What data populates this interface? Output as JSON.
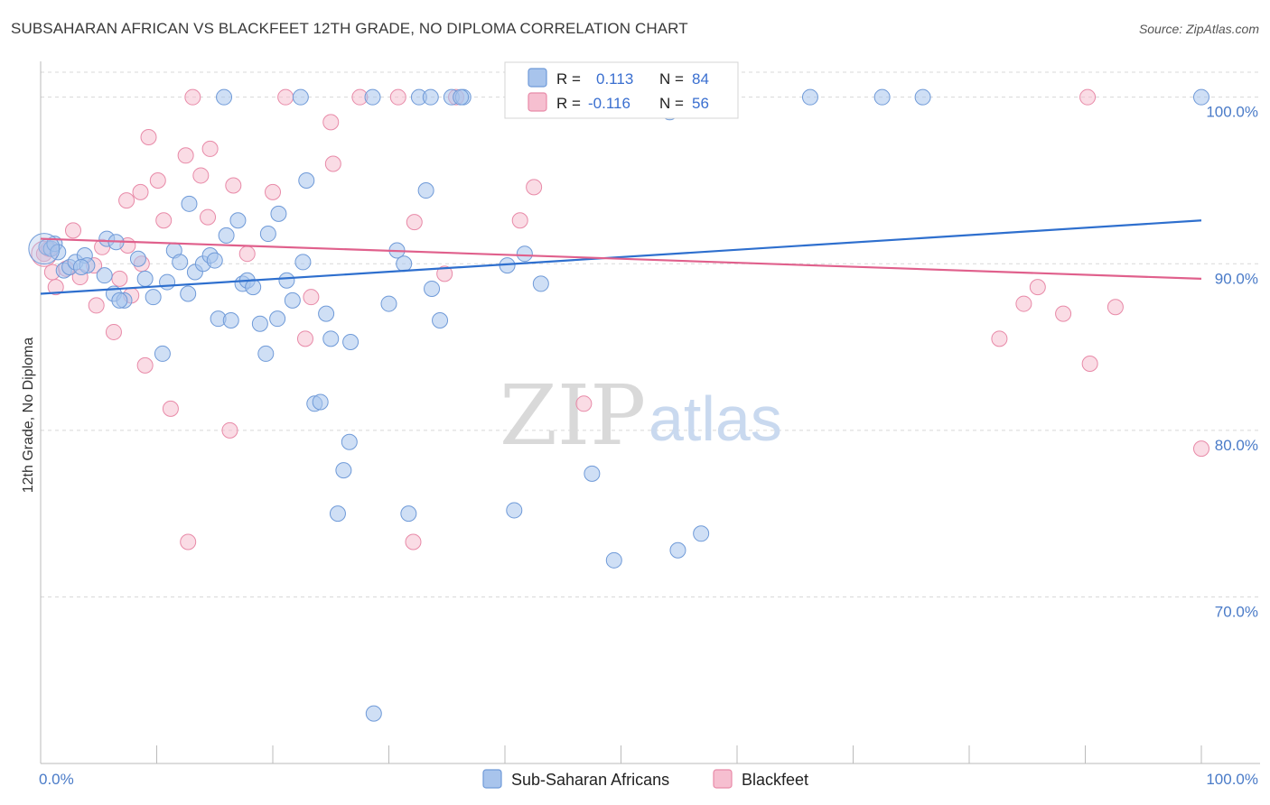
{
  "header": {
    "title": "SUBSAHARAN AFRICAN VS BLACKFEET 12TH GRADE, NO DIPLOMA CORRELATION CHART",
    "source": "Source: ZipAtlas.com"
  },
  "watermark": {
    "zip": "ZIP",
    "atlas": "atlas"
  },
  "colors": {
    "blue_fill": "#a8c4ec",
    "blue_stroke": "#6f9ad8",
    "blue_line": "#2e6fce",
    "pink_fill": "#f6bfd0",
    "pink_stroke": "#e88aa8",
    "pink_line": "#e0608c",
    "grid": "#d8d8d8",
    "tick_text": "#4a7bc8"
  },
  "legend": {
    "rows": [
      {
        "r_label": "R =",
        "r_value": "0.113",
        "n_label": "N =",
        "n_value": "84"
      },
      {
        "r_label": "R =",
        "r_value": "-0.116",
        "n_label": "N =",
        "n_value": "56"
      }
    ]
  },
  "chart_data": {
    "type": "scatter",
    "title": "SUBSAHARAN AFRICAN VS BLACKFEET 12TH GRADE, NO DIPLOMA CORRELATION CHART",
    "xlabel": "",
    "ylabel": "12th Grade, No Diploma",
    "xlim": [
      0,
      100
    ],
    "ylim": [
      60,
      101.5
    ],
    "x_tick_labels": [
      "0.0%",
      "100.0%"
    ],
    "y_ticks": [
      70,
      80,
      90,
      100
    ],
    "y_tick_labels": [
      "70.0%",
      "80.0%",
      "90.0%",
      "100.0%"
    ],
    "grid": true,
    "legend_position": "top-center",
    "series": [
      {
        "name": "Sub-Saharan Africans",
        "r": 0.113,
        "n": 84,
        "trend": {
          "x": [
            0,
            100
          ],
          "y": [
            88.2,
            92.6
          ]
        },
        "points": [
          [
            0.5,
            91.0
          ],
          [
            0.9,
            90.9
          ],
          [
            1.2,
            91.2
          ],
          [
            1.5,
            90.7
          ],
          [
            2.0,
            89.6
          ],
          [
            2.5,
            89.8
          ],
          [
            3.0,
            90.1
          ],
          [
            3.8,
            90.5
          ],
          [
            4.0,
            89.9
          ],
          [
            5.7,
            91.5
          ],
          [
            6.5,
            91.3
          ],
          [
            5.5,
            89.3
          ],
          [
            6.3,
            88.2
          ],
          [
            7.2,
            87.8
          ],
          [
            8.4,
            90.3
          ],
          [
            9.0,
            89.1
          ],
          [
            9.7,
            88.0
          ],
          [
            10.5,
            84.6
          ],
          [
            10.9,
            88.9
          ],
          [
            11.5,
            90.8
          ],
          [
            12.0,
            90.1
          ],
          [
            12.7,
            88.2
          ],
          [
            12.8,
            93.6
          ],
          [
            13.3,
            89.5
          ],
          [
            14.0,
            90.0
          ],
          [
            14.6,
            90.5
          ],
          [
            15.0,
            90.2
          ],
          [
            15.3,
            86.7
          ],
          [
            16.0,
            91.7
          ],
          [
            16.4,
            86.6
          ],
          [
            17.0,
            92.6
          ],
          [
            17.4,
            88.8
          ],
          [
            17.8,
            89.0
          ],
          [
            18.3,
            88.6
          ],
          [
            18.9,
            86.4
          ],
          [
            19.4,
            84.6
          ],
          [
            19.6,
            91.8
          ],
          [
            20.4,
            86.7
          ],
          [
            20.5,
            93.0
          ],
          [
            21.2,
            89.0
          ],
          [
            21.7,
            87.8
          ],
          [
            22.6,
            90.1
          ],
          [
            22.9,
            95.0
          ],
          [
            23.6,
            81.6
          ],
          [
            24.1,
            81.7
          ],
          [
            24.6,
            87.0
          ],
          [
            25.0,
            85.5
          ],
          [
            26.1,
            77.6
          ],
          [
            26.6,
            79.3
          ],
          [
            25.6,
            75.0
          ],
          [
            26.7,
            85.3
          ],
          [
            28.7,
            63.0
          ],
          [
            30.0,
            87.6
          ],
          [
            30.7,
            90.8
          ],
          [
            31.3,
            90.0
          ],
          [
            31.7,
            75.0
          ],
          [
            33.2,
            94.4
          ],
          [
            33.7,
            88.5
          ],
          [
            34.4,
            86.6
          ],
          [
            32.6,
            100.0
          ],
          [
            33.6,
            100.0
          ],
          [
            35.4,
            100.0
          ],
          [
            36.4,
            100.0
          ],
          [
            40.2,
            89.9
          ],
          [
            40.8,
            75.2
          ],
          [
            41.7,
            90.6
          ],
          [
            43.1,
            88.8
          ],
          [
            47.5,
            77.4
          ],
          [
            49.4,
            72.2
          ],
          [
            53.0,
            100.0
          ],
          [
            54.2,
            99.1
          ],
          [
            54.9,
            72.8
          ],
          [
            56.9,
            73.8
          ],
          [
            66.3,
            100.0
          ],
          [
            72.5,
            100.0
          ],
          [
            76.0,
            100.0
          ],
          [
            100.0,
            100.0
          ],
          [
            22.4,
            100.0
          ],
          [
            28.6,
            100.0
          ],
          [
            36.2,
            100.0
          ],
          [
            3.5,
            89.8
          ],
          [
            6.8,
            87.8
          ],
          [
            15.8,
            100.0
          ],
          [
            43.3,
            100.0
          ]
        ]
      },
      {
        "name": "Blackfeet",
        "r": -0.116,
        "n": 56,
        "trend": {
          "x": [
            0,
            100
          ],
          "y": [
            91.5,
            89.1
          ]
        },
        "points": [
          [
            0.3,
            90.6
          ],
          [
            0.7,
            90.9
          ],
          [
            1.0,
            89.5
          ],
          [
            1.3,
            88.6
          ],
          [
            2.2,
            89.7
          ],
          [
            2.8,
            92.0
          ],
          [
            3.4,
            89.2
          ],
          [
            4.6,
            89.9
          ],
          [
            4.8,
            87.5
          ],
          [
            5.3,
            91.0
          ],
          [
            6.3,
            85.9
          ],
          [
            6.8,
            89.1
          ],
          [
            7.4,
            93.8
          ],
          [
            7.8,
            88.1
          ],
          [
            7.5,
            91.1
          ],
          [
            8.7,
            90.0
          ],
          [
            8.6,
            94.3
          ],
          [
            9.0,
            83.9
          ],
          [
            9.3,
            97.6
          ],
          [
            10.1,
            95.0
          ],
          [
            10.6,
            92.6
          ],
          [
            11.2,
            81.3
          ],
          [
            12.5,
            96.5
          ],
          [
            12.7,
            73.3
          ],
          [
            13.1,
            100.0
          ],
          [
            13.8,
            95.3
          ],
          [
            14.4,
            92.8
          ],
          [
            14.6,
            96.9
          ],
          [
            16.3,
            80.0
          ],
          [
            16.6,
            94.7
          ],
          [
            17.8,
            90.6
          ],
          [
            20.0,
            94.3
          ],
          [
            21.1,
            100.0
          ],
          [
            22.8,
            85.5
          ],
          [
            23.3,
            88.0
          ],
          [
            25.0,
            98.5
          ],
          [
            25.2,
            96.0
          ],
          [
            27.5,
            100.0
          ],
          [
            30.8,
            100.0
          ],
          [
            32.2,
            92.5
          ],
          [
            32.1,
            73.3
          ],
          [
            34.8,
            89.4
          ],
          [
            35.8,
            100.0
          ],
          [
            40.8,
            100.0
          ],
          [
            41.3,
            92.6
          ],
          [
            42.5,
            94.6
          ],
          [
            46.8,
            81.6
          ],
          [
            47.0,
            100.0
          ],
          [
            82.6,
            85.5
          ],
          [
            84.7,
            87.6
          ],
          [
            85.9,
            88.6
          ],
          [
            88.1,
            87.0
          ],
          [
            90.2,
            100.0
          ],
          [
            90.4,
            84.0
          ],
          [
            92.6,
            87.4
          ],
          [
            100.0,
            78.9
          ]
        ]
      }
    ]
  }
}
